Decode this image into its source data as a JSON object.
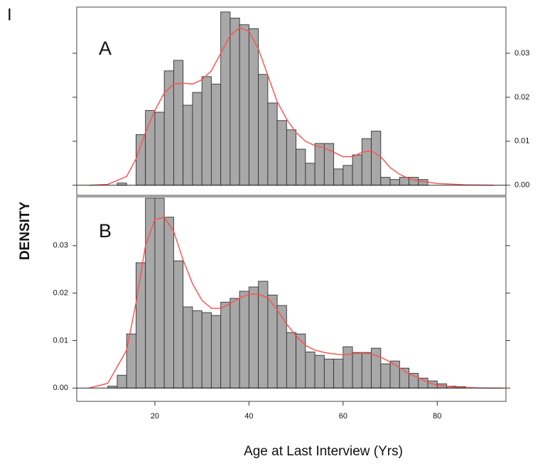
{
  "corner_label": "I",
  "chart_data": [
    {
      "type": "histogram",
      "panel_label": "A",
      "bins": [
        12,
        14,
        16,
        18,
        20,
        22,
        24,
        26,
        28,
        30,
        32,
        34,
        36,
        38,
        40,
        42,
        44,
        46,
        48,
        50,
        52,
        54,
        56,
        58,
        60,
        62,
        64,
        66,
        68,
        70,
        72,
        74,
        76,
        78
      ],
      "values": [
        0.0005,
        0,
        0.0115,
        0.017,
        0.0166,
        0.026,
        0.0284,
        0.0182,
        0.0211,
        0.0247,
        0.023,
        0.0394,
        0.038,
        0.0365,
        0.0356,
        0.0252,
        0.0187,
        0.0147,
        0.0126,
        0.0082,
        0.005,
        0.0095,
        0.0095,
        0.0037,
        0.0045,
        0.0069,
        0.0106,
        0.0123,
        0.0018,
        0.0013,
        0.0018,
        0.0018,
        0.0013
      ],
      "color": "#a8a8a8",
      "density": {
        "color": "#ff4d4d",
        "x": [
          6,
          10,
          14,
          16,
          18,
          20,
          22,
          24,
          26,
          28,
          30,
          32,
          34,
          36,
          38,
          40,
          42,
          44,
          46,
          48,
          50,
          52,
          54,
          56,
          58,
          60,
          62,
          64,
          66,
          68,
          70,
          72,
          74,
          76,
          80,
          86,
          92
        ],
        "values": [
          0,
          0.0002,
          0.002,
          0.006,
          0.012,
          0.017,
          0.021,
          0.023,
          0.0232,
          0.023,
          0.024,
          0.026,
          0.03,
          0.034,
          0.0358,
          0.035,
          0.031,
          0.025,
          0.019,
          0.015,
          0.012,
          0.01,
          0.009,
          0.0085,
          0.0075,
          0.0065,
          0.0065,
          0.0075,
          0.0078,
          0.0065,
          0.004,
          0.0025,
          0.0015,
          0.001,
          0.0004,
          0.0001,
          0
        ]
      },
      "xlim": [
        3.4,
        94.6
      ],
      "ylim": [
        -0.0023,
        0.0405
      ],
      "yticks": [
        {
          "value": 0,
          "label": "0.00"
        },
        {
          "value": 0.01,
          "label": "0.01"
        },
        {
          "value": 0.02,
          "label": "0.02"
        },
        {
          "value": 0.03,
          "label": "0.03"
        }
      ],
      "ytick_side": "right"
    },
    {
      "type": "histogram",
      "panel_label": "B",
      "bins": [
        10,
        12,
        14,
        16,
        18,
        20,
        22,
        24,
        26,
        28,
        30,
        32,
        34,
        36,
        38,
        40,
        42,
        44,
        46,
        48,
        50,
        52,
        54,
        56,
        58,
        60,
        62,
        64,
        66,
        68,
        70,
        72,
        74,
        76,
        78,
        80,
        82,
        84,
        86
      ],
      "values": [
        0.0004,
        0.0027,
        0.0114,
        0.0264,
        0.04,
        0.04,
        0.036,
        0.0268,
        0.0171,
        0.0163,
        0.0159,
        0.0153,
        0.0181,
        0.0189,
        0.0204,
        0.0213,
        0.0225,
        0.0196,
        0.0174,
        0.0117,
        0.0114,
        0.0076,
        0.0069,
        0.0061,
        0.0061,
        0.0087,
        0.0075,
        0.0075,
        0.0084,
        0.0051,
        0.0057,
        0.0042,
        0.0031,
        0.0021,
        0.0015,
        0.0009,
        0.0004,
        0.0003
      ],
      "color": "#a8a8a8",
      "density": {
        "color": "#ff4d4d",
        "x": [
          6,
          10,
          14,
          16,
          18,
          20,
          22,
          24,
          26,
          28,
          30,
          32,
          34,
          36,
          38,
          40,
          42,
          44,
          46,
          48,
          50,
          52,
          54,
          56,
          58,
          60,
          62,
          64,
          66,
          68,
          70,
          72,
          74,
          76,
          78,
          80,
          84,
          90,
          94
        ],
        "values": [
          0,
          0.001,
          0.008,
          0.018,
          0.03,
          0.0355,
          0.036,
          0.033,
          0.027,
          0.022,
          0.0185,
          0.0168,
          0.0168,
          0.0178,
          0.019,
          0.0198,
          0.0198,
          0.019,
          0.0165,
          0.0135,
          0.011,
          0.009,
          0.008,
          0.0075,
          0.0072,
          0.007,
          0.0072,
          0.0074,
          0.0072,
          0.0065,
          0.0055,
          0.0043,
          0.003,
          0.0022,
          0.0012,
          0.0006,
          0.0002,
          0,
          0
        ]
      },
      "xlim": [
        3.4,
        94.6
      ],
      "ylim": [
        -0.0028,
        0.0403
      ],
      "xticks": [
        20,
        40,
        60,
        80
      ],
      "yticks": [
        {
          "value": 0,
          "label": "0.00"
        },
        {
          "value": 0.01,
          "label": "0.01"
        },
        {
          "value": 0.02,
          "label": "0.02"
        },
        {
          "value": 0.03,
          "label": "0.03"
        }
      ],
      "ytick_side": "left",
      "xlabel": "Age at Last Interview (Yrs)",
      "ylabel": "DENSITY"
    }
  ]
}
